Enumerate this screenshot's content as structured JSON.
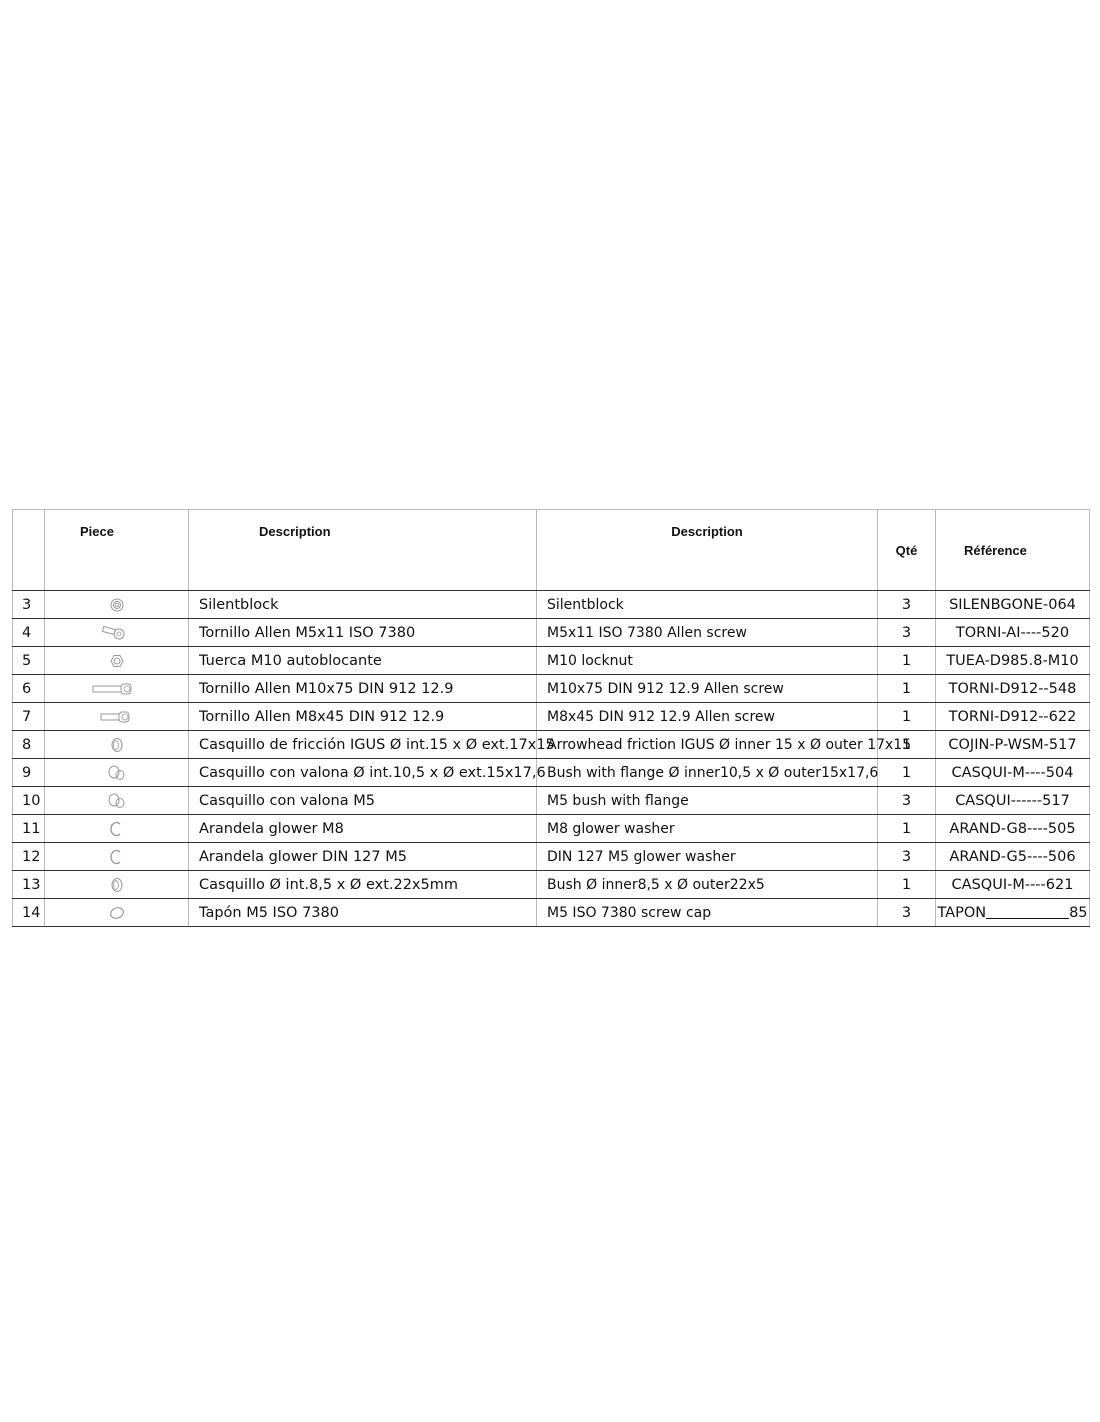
{
  "table": {
    "headers": {
      "number": "",
      "piece": "Piece",
      "description_es": "Description",
      "description_en": "Description",
      "qty": "Qté",
      "reference": "Référence"
    },
    "rows": [
      {
        "n": "3",
        "icon": "silentblock-icon",
        "es": "Silentblock",
        "en": "Silentblock",
        "qty": "3",
        "ref": "SILENBGONE-064"
      },
      {
        "n": "4",
        "icon": "short-screw-icon",
        "es": "Tornillo Allen M5x11 ISO 7380",
        "en": "M5x11 ISO 7380 Allen screw",
        "qty": "3",
        "ref": "TORNI-AI----520"
      },
      {
        "n": "5",
        "icon": "nut-icon",
        "es": "Tuerca M10 autoblocante",
        "en": "M10 locknut",
        "qty": "1",
        "ref": "TUEA-D985.8-M10"
      },
      {
        "n": "6",
        "icon": "long-screw-icon",
        "es": "Tornillo Allen M10x75 DIN 912 12.9",
        "en": "M10x75 DIN 912 12.9 Allen screw",
        "qty": "1",
        "ref": "TORNI-D912--548"
      },
      {
        "n": "7",
        "icon": "medium-screw-icon",
        "es": "Tornillo Allen M8x45 DIN 912 12.9",
        "en": "M8x45 DIN 912 12.9 Allen screw",
        "qty": "1",
        "ref": "TORNI-D912--622"
      },
      {
        "n": "8",
        "icon": "bushing-icon",
        "es": "Casquillo de fricción IGUS Ø int.15 x Ø ext.17x15",
        "en": "Arrowhead friction IGUS Ø inner 15 x Ø outer 17x15",
        "qty": "1",
        "ref": "COJIN-P-WSM-517"
      },
      {
        "n": "9",
        "icon": "flanged-bush-icon",
        "es": "Casquillo con valona Ø int.10,5 x Ø ext.15x17,6",
        "en": "Bush with flange Ø inner10,5 x Ø outer15x17,6",
        "qty": "1",
        "ref": "CASQUI-M----504"
      },
      {
        "n": "10",
        "icon": "flanged-bush-icon",
        "es": "Casquillo con valona M5",
        "en": "M5 bush with flange",
        "qty": "3",
        "ref": "CASQUI------517"
      },
      {
        "n": "11",
        "icon": "washer-icon",
        "es": "Arandela glower M8",
        "en": "M8 glower washer",
        "qty": "1",
        "ref": "ARAND-G8----505"
      },
      {
        "n": "12",
        "icon": "washer-icon",
        "es": "Arandela glower DIN 127 M5",
        "en": "DIN 127 M5 glower washer",
        "qty": "3",
        "ref": "ARAND-G5----506"
      },
      {
        "n": "13",
        "icon": "bushing-icon",
        "es": "Casquillo Ø int.8,5 x Ø ext.22x5mm",
        "en": "Bush Ø inner8,5 x Ø outer22x5",
        "qty": "1",
        "ref": "CASQUI-M----621"
      },
      {
        "n": "14",
        "icon": "screw-cap-icon",
        "es": "Tapón M5 ISO 7380",
        "en": "M5 ISO 7380 screw cap",
        "qty": "3",
        "ref": "TAPON",
        "ref_suffix": "85"
      }
    ]
  }
}
